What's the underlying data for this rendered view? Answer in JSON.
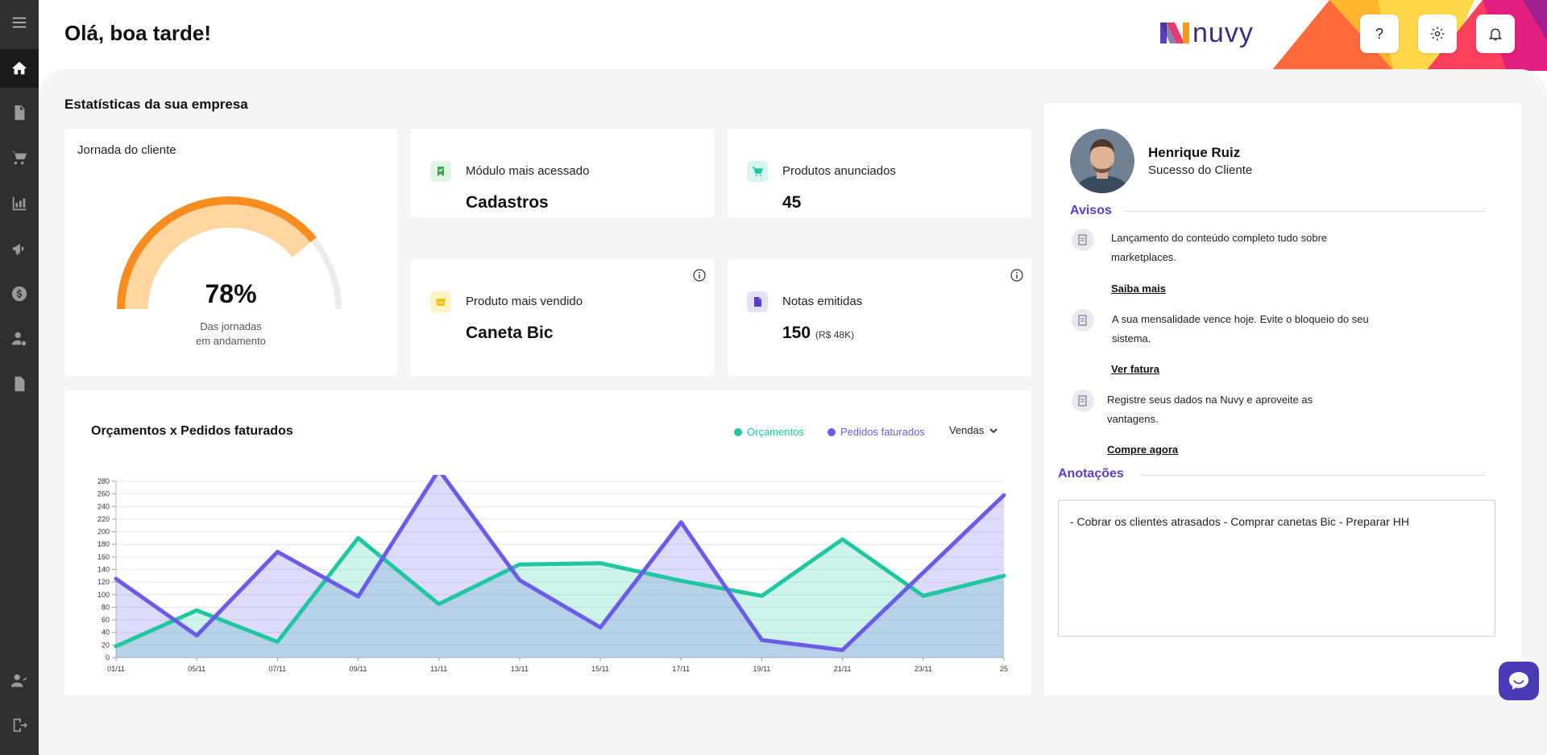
{
  "header": {
    "greeting": "Olá, boa tarde!",
    "brand": "nuvy",
    "help_label": "?"
  },
  "sidebar": {
    "items": [
      {
        "icon": "menu-icon"
      },
      {
        "icon": "home-icon",
        "active": true
      },
      {
        "icon": "document-add-icon"
      },
      {
        "icon": "cart-icon"
      },
      {
        "icon": "chart-icon"
      },
      {
        "icon": "megaphone-icon"
      },
      {
        "icon": "dollar-icon"
      },
      {
        "icon": "user-settings-icon"
      },
      {
        "icon": "file-icon"
      },
      {
        "icon": "user-support-icon"
      },
      {
        "icon": "logout-icon"
      }
    ]
  },
  "stats": {
    "title": "Estatísticas da sua empresa",
    "journey": {
      "label": "Jornada do cliente",
      "percent": "78%",
      "percent_value": 0.78,
      "caption_line1": "Das jornadas",
      "caption_line2": "em andamento"
    },
    "kpis": {
      "most_accessed": {
        "label": "Módulo mais acessado",
        "value": "Cadastros"
      },
      "products_listed": {
        "label": "Produtos anunciados",
        "value": "45"
      },
      "best_seller": {
        "label": "Produto mais vendido",
        "value": "Caneta Bic"
      },
      "invoices": {
        "label": "Notas emitidas",
        "value": "150",
        "sub": "(R$ 48K)"
      }
    }
  },
  "chart": {
    "title": "Orçamentos x Pedidos faturados",
    "dropdown": "Vendas",
    "colors": {
      "orcamentos": "#1ec7a0",
      "pedidos": "#6a5ce6"
    }
  },
  "chart_data": {
    "type": "area",
    "title": "Orçamentos x Pedidos faturados",
    "categories": [
      "01/11",
      "05/11",
      "07/11",
      "09/11",
      "11/11",
      "13/11",
      "15/11",
      "17/11",
      "19/11",
      "21/11",
      "23/11",
      "25"
    ],
    "yticks": [
      0,
      20,
      40,
      60,
      80,
      100,
      120,
      140,
      160,
      180,
      200,
      220,
      240,
      260,
      280
    ],
    "ylim": [
      0,
      280
    ],
    "series": [
      {
        "name": "Orçamentos",
        "values": [
          18,
          75,
          25,
          190,
          85,
          148,
          150,
          122,
          98,
          188,
          98,
          130
        ]
      },
      {
        "name": "Pedidos faturados",
        "values": [
          125,
          35,
          168,
          97,
          298,
          123,
          48,
          215,
          28,
          12,
          135,
          258
        ]
      }
    ],
    "legend": "top-right",
    "grid": true
  },
  "profile": {
    "name": "Henrique Ruiz",
    "role": "Sucesso do Cliente"
  },
  "notices": {
    "title": "Avisos",
    "items": [
      {
        "text": "Lançamento do conteúdo completo tudo sobre marketplaces.",
        "link": "Saiba mais"
      },
      {
        "text": "A sua mensalidade vence hoje. Evite o bloqueio do seu sistema.",
        "link": "Ver fatura"
      },
      {
        "text": "Registre seus dados na Nuvy e aproveite as vantagens.",
        "link": "Compre agora"
      }
    ]
  },
  "notes": {
    "title": "Anotações",
    "text": "- Cobrar os clientes atrasados - Comprar canetas Bic - Preparar HH"
  }
}
